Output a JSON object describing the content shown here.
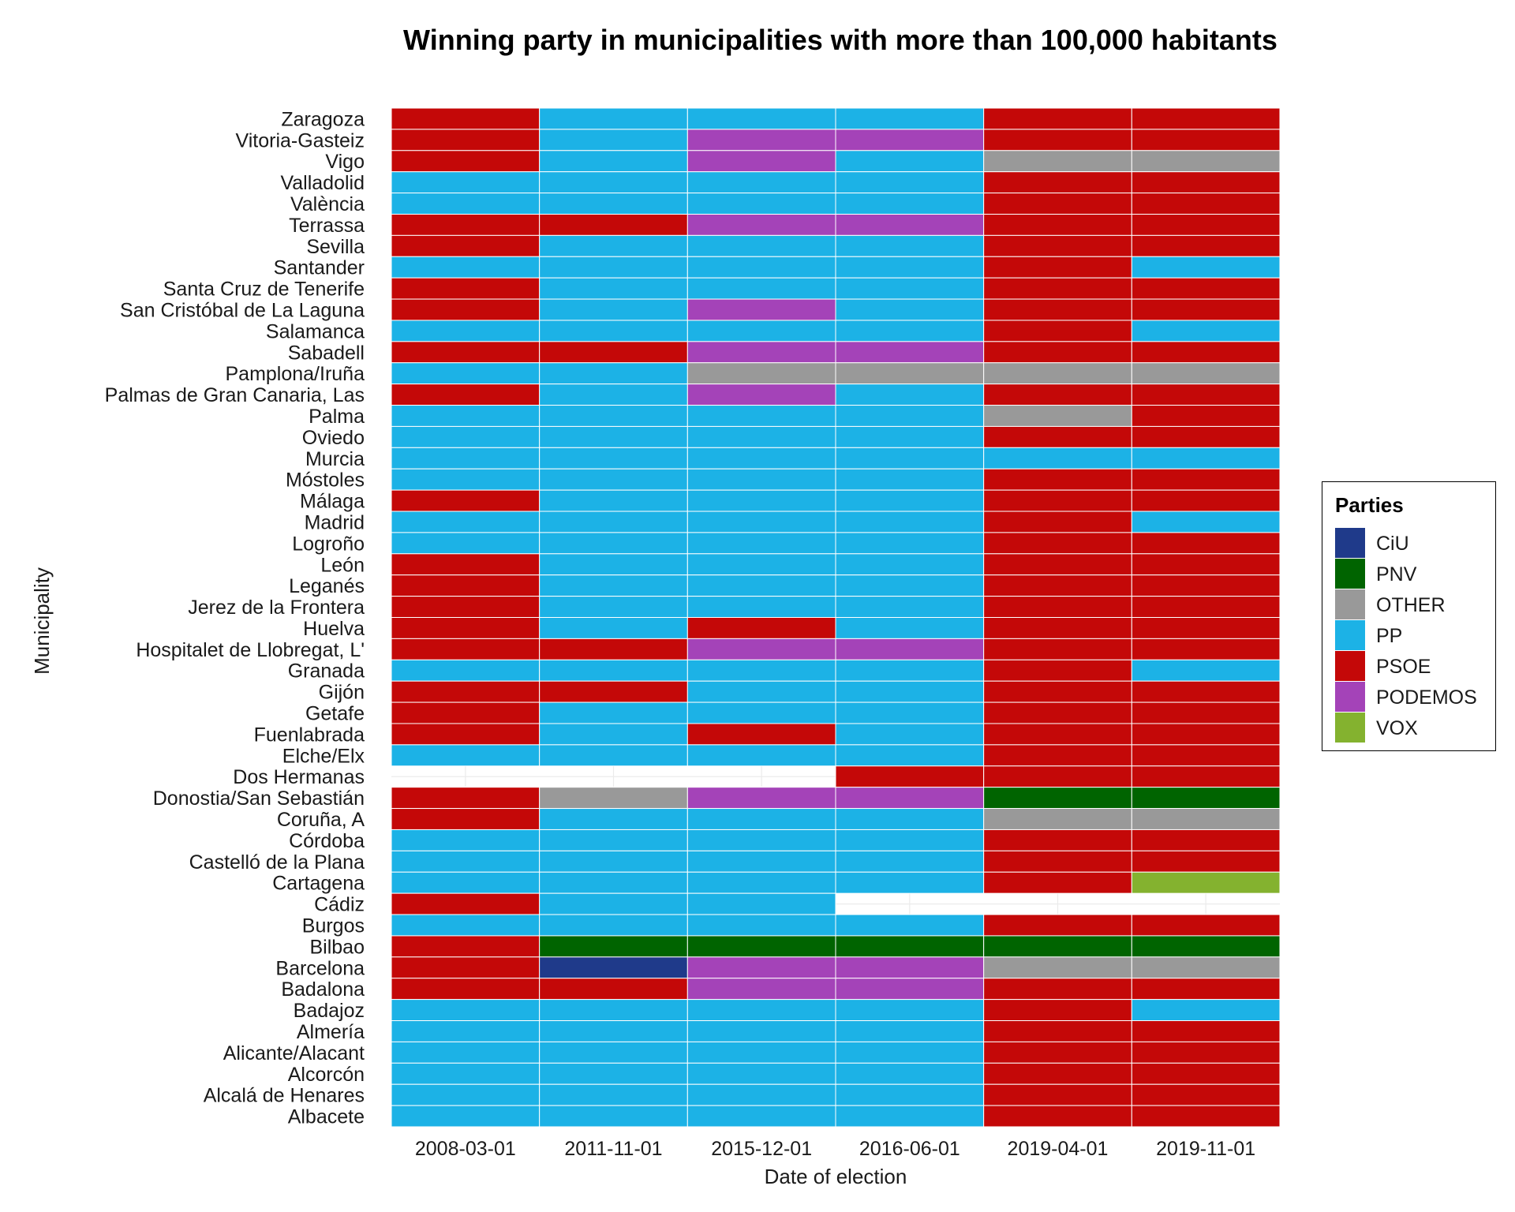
{
  "chart_data": {
    "type": "heatmap",
    "title": "Winning party in municipalities with more than 100,000 habitants",
    "xlabel": "Date of election",
    "ylabel": "Municipality",
    "x": [
      "2008-03-01",
      "2011-11-01",
      "2015-12-01",
      "2016-06-01",
      "2019-04-01",
      "2019-11-01"
    ],
    "legend": {
      "title": "Parties",
      "placement": "right",
      "items": [
        {
          "name": "CiU",
          "color": "#1F3A8A"
        },
        {
          "name": "PNV",
          "color": "#006400"
        },
        {
          "name": "OTHER",
          "color": "#999999"
        },
        {
          "name": "PP",
          "color": "#1CB2E6"
        },
        {
          "name": "PSOE",
          "color": "#C40808"
        },
        {
          "name": "PODEMOS",
          "color": "#A443B8"
        },
        {
          "name": "VOX",
          "color": "#84B22F"
        }
      ]
    },
    "rows": [
      {
        "name": "Zaragoza",
        "values": [
          "PSOE",
          "PP",
          "PP",
          "PP",
          "PSOE",
          "PSOE"
        ]
      },
      {
        "name": "Vitoria-Gasteiz",
        "values": [
          "PSOE",
          "PP",
          "PODEMOS",
          "PODEMOS",
          "PSOE",
          "PSOE"
        ]
      },
      {
        "name": "Vigo",
        "values": [
          "PSOE",
          "PP",
          "PODEMOS",
          "PP",
          "OTHER",
          "OTHER"
        ]
      },
      {
        "name": "Valladolid",
        "values": [
          "PP",
          "PP",
          "PP",
          "PP",
          "PSOE",
          "PSOE"
        ]
      },
      {
        "name": "València",
        "values": [
          "PP",
          "PP",
          "PP",
          "PP",
          "PSOE",
          "PSOE"
        ]
      },
      {
        "name": "Terrassa",
        "values": [
          "PSOE",
          "PSOE",
          "PODEMOS",
          "PODEMOS",
          "PSOE",
          "PSOE"
        ]
      },
      {
        "name": "Sevilla",
        "values": [
          "PSOE",
          "PP",
          "PP",
          "PP",
          "PSOE",
          "PSOE"
        ]
      },
      {
        "name": "Santander",
        "values": [
          "PP",
          "PP",
          "PP",
          "PP",
          "PSOE",
          "PP"
        ]
      },
      {
        "name": "Santa Cruz de Tenerife",
        "values": [
          "PSOE",
          "PP",
          "PP",
          "PP",
          "PSOE",
          "PSOE"
        ]
      },
      {
        "name": "San Cristóbal de La Laguna",
        "values": [
          "PSOE",
          "PP",
          "PODEMOS",
          "PP",
          "PSOE",
          "PSOE"
        ]
      },
      {
        "name": "Salamanca",
        "values": [
          "PP",
          "PP",
          "PP",
          "PP",
          "PSOE",
          "PP"
        ]
      },
      {
        "name": "Sabadell",
        "values": [
          "PSOE",
          "PSOE",
          "PODEMOS",
          "PODEMOS",
          "PSOE",
          "PSOE"
        ]
      },
      {
        "name": "Pamplona/Iruña",
        "values": [
          "PP",
          "PP",
          "OTHER",
          "OTHER",
          "OTHER",
          "OTHER"
        ]
      },
      {
        "name": "Palmas de Gran Canaria, Las",
        "values": [
          "PSOE",
          "PP",
          "PODEMOS",
          "PP",
          "PSOE",
          "PSOE"
        ]
      },
      {
        "name": "Palma",
        "values": [
          "PP",
          "PP",
          "PP",
          "PP",
          "OTHER",
          "PSOE"
        ]
      },
      {
        "name": "Oviedo",
        "values": [
          "PP",
          "PP",
          "PP",
          "PP",
          "PSOE",
          "PSOE"
        ]
      },
      {
        "name": "Murcia",
        "values": [
          "PP",
          "PP",
          "PP",
          "PP",
          "PP",
          "PP"
        ]
      },
      {
        "name": "Móstoles",
        "values": [
          "PP",
          "PP",
          "PP",
          "PP",
          "PSOE",
          "PSOE"
        ]
      },
      {
        "name": "Málaga",
        "values": [
          "PSOE",
          "PP",
          "PP",
          "PP",
          "PSOE",
          "PSOE"
        ]
      },
      {
        "name": "Madrid",
        "values": [
          "PP",
          "PP",
          "PP",
          "PP",
          "PSOE",
          "PP"
        ]
      },
      {
        "name": "Logroño",
        "values": [
          "PP",
          "PP",
          "PP",
          "PP",
          "PSOE",
          "PSOE"
        ]
      },
      {
        "name": "León",
        "values": [
          "PSOE",
          "PP",
          "PP",
          "PP",
          "PSOE",
          "PSOE"
        ]
      },
      {
        "name": "Leganés",
        "values": [
          "PSOE",
          "PP",
          "PP",
          "PP",
          "PSOE",
          "PSOE"
        ]
      },
      {
        "name": "Jerez de la Frontera",
        "values": [
          "PSOE",
          "PP",
          "PP",
          "PP",
          "PSOE",
          "PSOE"
        ]
      },
      {
        "name": "Huelva",
        "values": [
          "PSOE",
          "PP",
          "PSOE",
          "PP",
          "PSOE",
          "PSOE"
        ]
      },
      {
        "name": "Hospitalet de Llobregat, L'",
        "values": [
          "PSOE",
          "PSOE",
          "PODEMOS",
          "PODEMOS",
          "PSOE",
          "PSOE"
        ]
      },
      {
        "name": "Granada",
        "values": [
          "PP",
          "PP",
          "PP",
          "PP",
          "PSOE",
          "PP"
        ]
      },
      {
        "name": "Gijón",
        "values": [
          "PSOE",
          "PSOE",
          "PP",
          "PP",
          "PSOE",
          "PSOE"
        ]
      },
      {
        "name": "Getafe",
        "values": [
          "PSOE",
          "PP",
          "PP",
          "PP",
          "PSOE",
          "PSOE"
        ]
      },
      {
        "name": "Fuenlabrada",
        "values": [
          "PSOE",
          "PP",
          "PSOE",
          "PP",
          "PSOE",
          "PSOE"
        ]
      },
      {
        "name": "Elche/Elx",
        "values": [
          "PP",
          "PP",
          "PP",
          "PP",
          "PSOE",
          "PSOE"
        ]
      },
      {
        "name": "Dos Hermanas",
        "values": [
          null,
          null,
          null,
          "PSOE",
          "PSOE",
          "PSOE"
        ]
      },
      {
        "name": "Donostia/San Sebastián",
        "values": [
          "PSOE",
          "OTHER",
          "PODEMOS",
          "PODEMOS",
          "PNV",
          "PNV"
        ]
      },
      {
        "name": "Coruña, A",
        "values": [
          "PSOE",
          "PP",
          "PP",
          "PP",
          "OTHER",
          "OTHER"
        ]
      },
      {
        "name": "Córdoba",
        "values": [
          "PP",
          "PP",
          "PP",
          "PP",
          "PSOE",
          "PSOE"
        ]
      },
      {
        "name": "Castelló de la Plana",
        "values": [
          "PP",
          "PP",
          "PP",
          "PP",
          "PSOE",
          "PSOE"
        ]
      },
      {
        "name": "Cartagena",
        "values": [
          "PP",
          "PP",
          "PP",
          "PP",
          "PSOE",
          "VOX"
        ]
      },
      {
        "name": "Cádiz",
        "values": [
          "PSOE",
          "PP",
          "PP",
          null,
          null,
          null
        ]
      },
      {
        "name": "Burgos",
        "values": [
          "PP",
          "PP",
          "PP",
          "PP",
          "PSOE",
          "PSOE"
        ]
      },
      {
        "name": "Bilbao",
        "values": [
          "PSOE",
          "PNV",
          "PNV",
          "PNV",
          "PNV",
          "PNV"
        ]
      },
      {
        "name": "Barcelona",
        "values": [
          "PSOE",
          "CiU",
          "PODEMOS",
          "PODEMOS",
          "OTHER",
          "OTHER"
        ]
      },
      {
        "name": "Badalona",
        "values": [
          "PSOE",
          "PSOE",
          "PODEMOS",
          "PODEMOS",
          "PSOE",
          "PSOE"
        ]
      },
      {
        "name": "Badajoz",
        "values": [
          "PP",
          "PP",
          "PP",
          "PP",
          "PSOE",
          "PP"
        ]
      },
      {
        "name": "Almería",
        "values": [
          "PP",
          "PP",
          "PP",
          "PP",
          "PSOE",
          "PSOE"
        ]
      },
      {
        "name": "Alicante/Alacant",
        "values": [
          "PP",
          "PP",
          "PP",
          "PP",
          "PSOE",
          "PSOE"
        ]
      },
      {
        "name": "Alcorcón",
        "values": [
          "PP",
          "PP",
          "PP",
          "PP",
          "PSOE",
          "PSOE"
        ]
      },
      {
        "name": "Alcalá de Henares",
        "values": [
          "PP",
          "PP",
          "PP",
          "PP",
          "PSOE",
          "PSOE"
        ]
      },
      {
        "name": "Albacete",
        "values": [
          "PP",
          "PP",
          "PP",
          "PP",
          "PSOE",
          "PSOE"
        ]
      }
    ]
  }
}
